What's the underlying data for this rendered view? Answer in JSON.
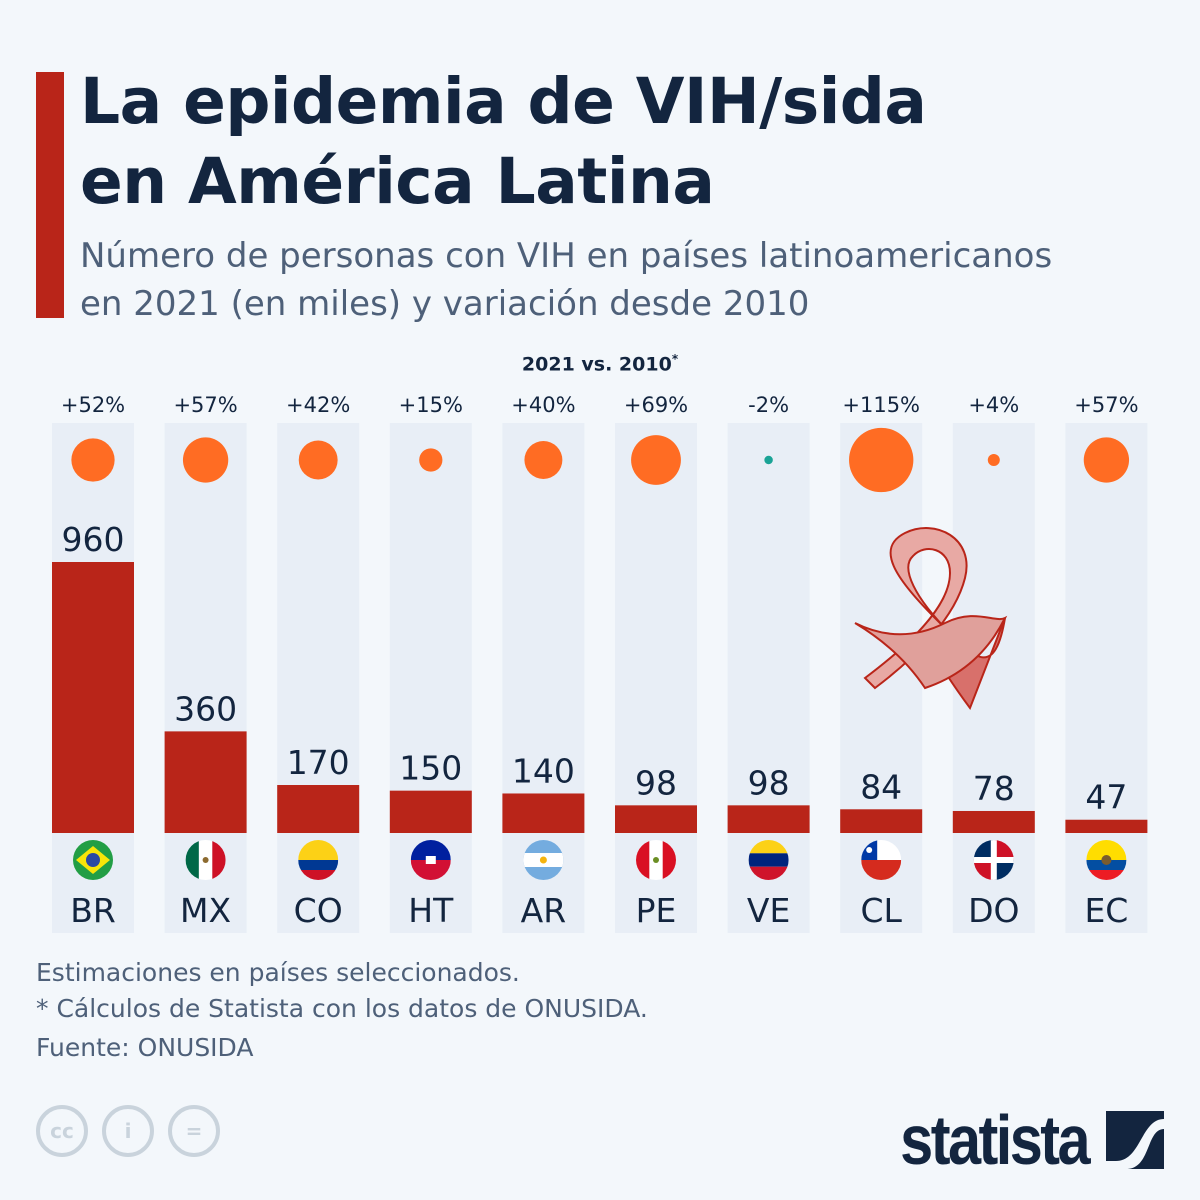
{
  "header": {
    "title_line1": "La epidemia de VIH/sida",
    "title_line2": "en América Latina",
    "subtitle_line1": "Número de personas con VIH en países latinoamericanos",
    "subtitle_line2": "en 2021 (en miles) y variación desde 2010"
  },
  "legend": {
    "label": "2021 vs. 2010",
    "marker": "*"
  },
  "chart_data": {
    "type": "bar",
    "title": "La epidemia de VIH/sida en América Latina",
    "subtitle": "Número de personas con VIH en países latinoamericanos en 2021 (en miles) y variación desde 2010",
    "categories": [
      "BR",
      "MX",
      "CO",
      "HT",
      "AR",
      "PE",
      "VE",
      "CL",
      "DO",
      "EC"
    ],
    "values": [
      960,
      360,
      170,
      150,
      140,
      98,
      98,
      84,
      78,
      47
    ],
    "value_labels": [
      "960",
      "360",
      "170",
      "150",
      "140",
      "98",
      "98",
      "84",
      "78",
      "47"
    ],
    "change_pct": [
      52,
      57,
      42,
      15,
      40,
      69,
      -2,
      115,
      4,
      57
    ],
    "change_labels": [
      "+52%",
      "+57%",
      "+42%",
      "+15%",
      "+40%",
      "+69%",
      "-2%",
      "+115%",
      "+4%",
      "+57%"
    ],
    "colors": {
      "bar": "#b92519",
      "positive": "#ff6c23",
      "negative": "#1aa396",
      "column_bg": "#e8eef6"
    }
  },
  "footer": {
    "note1": "Estimaciones en países seleccionados.",
    "note2": "* Cálculos de Statista con los datos de ONUSIDA.",
    "source": "Fuente: ONUSIDA",
    "logo": "statista",
    "cc_icons": [
      "cc-icon",
      "attribution-icon",
      "no-derivatives-icon"
    ]
  }
}
